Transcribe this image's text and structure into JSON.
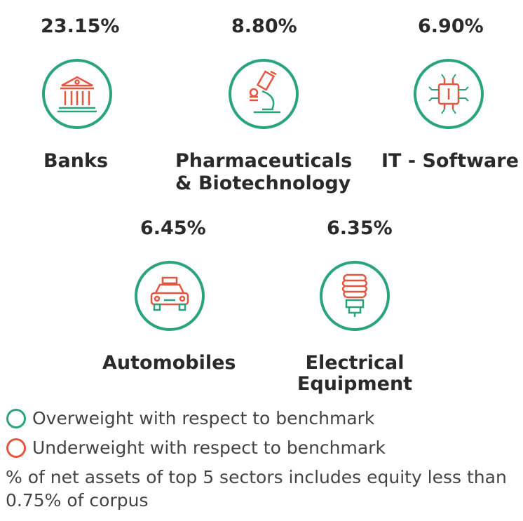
{
  "colors": {
    "overweight": "#2aa37f",
    "underweight": "#e4563f",
    "text": "#2a2a2a"
  },
  "sectors": [
    {
      "percent": "23.15%",
      "name": "Banks",
      "icon": "bank-icon",
      "weight": "overweight"
    },
    {
      "percent": "8.80%",
      "name_line1": "Pharmaceuticals",
      "name_line2": "& Biotechnology",
      "icon": "microscope-icon",
      "weight": "overweight"
    },
    {
      "percent": "6.90%",
      "name": "IT - Software",
      "icon": "chip-icon",
      "weight": "overweight"
    },
    {
      "percent": "6.45%",
      "name": "Automobiles",
      "icon": "car-icon",
      "weight": "overweight"
    },
    {
      "percent": "6.35%",
      "name_line1": "Electrical",
      "name_line2": "Equipment",
      "icon": "bulb-icon",
      "weight": "overweight"
    }
  ],
  "legend": {
    "overweight": "Overweight with respect to benchmark",
    "underweight": "Underweight with respect to benchmark"
  },
  "note": "% of net assets of top 5 sectors includes equity less than 0.75% of corpus"
}
